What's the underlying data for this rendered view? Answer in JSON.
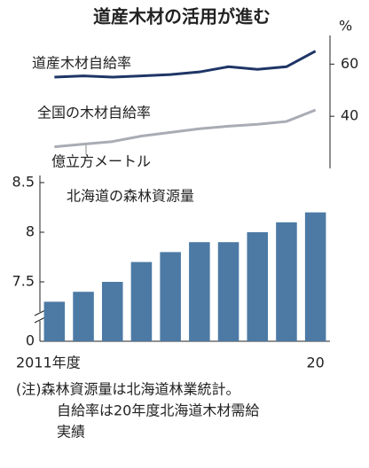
{
  "title": "道産木材の活用が進む",
  "chart_data": [
    {
      "type": "line",
      "y_unit": "%",
      "yaxis_side": "right",
      "series": [
        {
          "name": "道産木材自給率",
          "color": "#1f3566",
          "values": [
            55,
            55.5,
            55,
            55.5,
            56,
            57,
            59,
            58,
            59,
            65
          ]
        },
        {
          "name": "全国の木材自給率",
          "color": "#a9acb4",
          "values": [
            28.3,
            29.3,
            30.3,
            32.4,
            33.8,
            35.2,
            36.2,
            36.9,
            38,
            42.4
          ]
        }
      ],
      "ylim": [
        20,
        71
      ],
      "yticks": [
        40,
        60
      ]
    },
    {
      "type": "bar",
      "title": "北海道の森林資源量",
      "y_unit": "億立方メートル",
      "categories": [
        "2011年度",
        null,
        null,
        null,
        null,
        null,
        null,
        null,
        null,
        "20"
      ],
      "values": [
        7.3,
        7.4,
        7.5,
        7.7,
        7.8,
        7.9,
        7.9,
        8.0,
        8.1,
        8.2
      ],
      "color": "#4c7aa4",
      "ylim": [
        7.0,
        8.5
      ],
      "yticks": [
        0,
        7.5,
        8.0,
        8.5
      ],
      "axis_break": true
    }
  ],
  "note": [
    "(注)森林資源量は北海道林業統計。",
    "自給率は20年度北海道木材需給",
    "実績"
  ]
}
